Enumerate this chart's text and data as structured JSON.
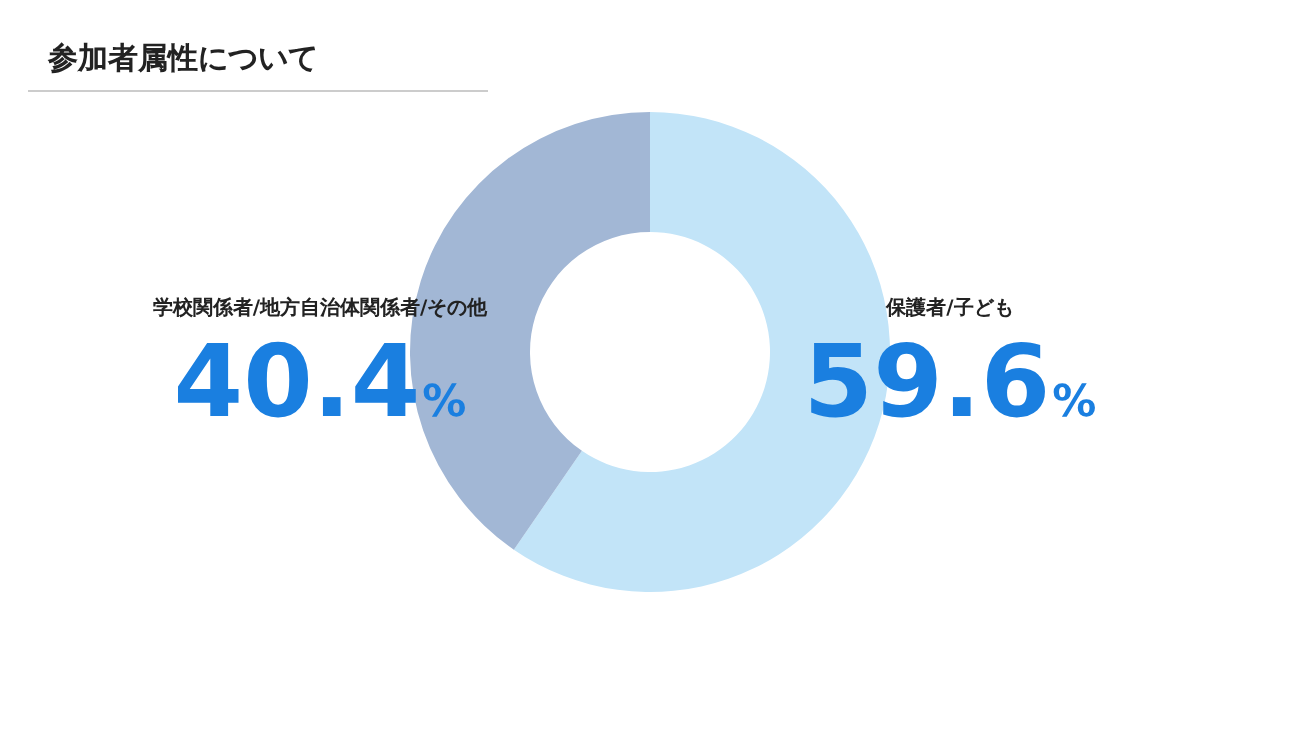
{
  "chart_data": {
    "type": "donut",
    "title": "参加者属性について",
    "categories": [
      "保護者/子ども",
      "学校関係者/地方自治体関係者/その他"
    ],
    "values": [
      59.6,
      40.4
    ],
    "colors": [
      "#c2e4f8",
      "#a2b7d5"
    ],
    "value_labels": [
      "59.6%",
      "40.4%"
    ]
  }
}
